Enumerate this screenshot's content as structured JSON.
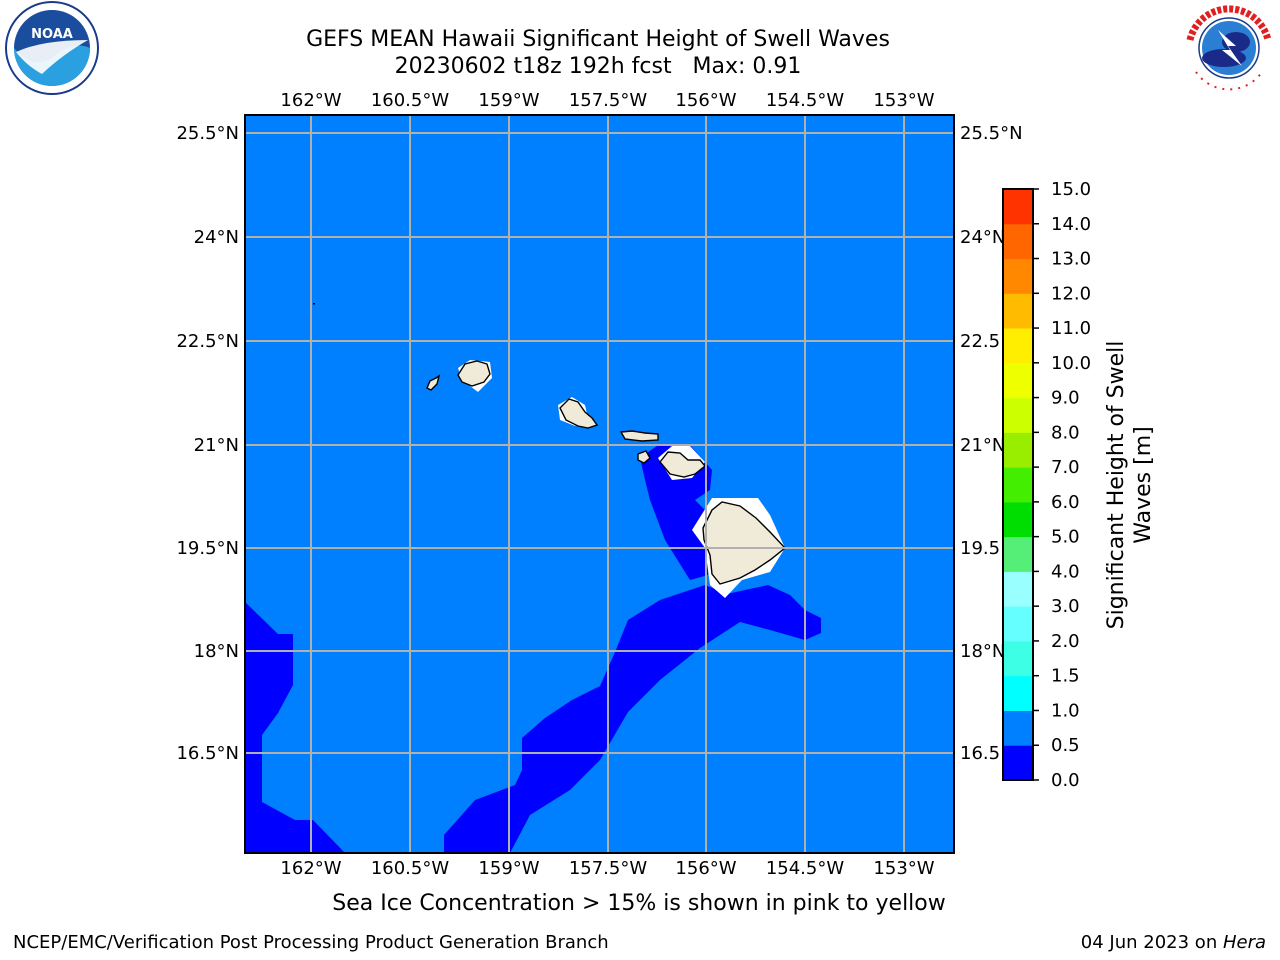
{
  "header": {
    "title_line1": "GEFS MEAN Hawaii Significant Height of Swell Waves",
    "title_line2": "20230602 t18z 192h fcst   Max: 0.91"
  },
  "map": {
    "lon_ticks": [
      "162°W",
      "160.5°W",
      "159°W",
      "157.5°W",
      "156°W",
      "154.5°W",
      "153°W"
    ],
    "lat_ticks_left": [
      "25.5°N",
      "24°N",
      "22.5°N",
      "21°N",
      "19.5°N",
      "18°N",
      "16.5°N"
    ],
    "lat_ticks_right": [
      "25.5°N",
      "24°N",
      "22.5",
      "21°N",
      "19.5",
      "18°N",
      "16.5"
    ]
  },
  "colorbar": {
    "label_line1": "Significant Height of Swell",
    "label_line2": "Waves [m]",
    "ticks": [
      "0.0",
      "0.5",
      "1.0",
      "1.5",
      "2.0",
      "3.0",
      "4.0",
      "5.0",
      "6.0",
      "7.0",
      "8.0",
      "9.0",
      "10.0",
      "11.0",
      "12.0",
      "13.0",
      "14.0",
      "15.0"
    ],
    "colors": [
      "#0000ff",
      "#007fff",
      "#00ffff",
      "#3cffe6",
      "#66ffff",
      "#99ffff",
      "#55ee77",
      "#00dd00",
      "#44ee00",
      "#99ee00",
      "#ccff00",
      "#eeff00",
      "#ffee00",
      "#ffbb00",
      "#ff8800",
      "#ff6600",
      "#ff3300",
      "#ff0000"
    ]
  },
  "legend_colors": {
    "ocean": "#007fff",
    "swell_low": "#0000ff",
    "land": "#efebd8",
    "grid": "#b0b0b0"
  },
  "footer": {
    "note": "Sea Ice Concentration > 15% is shown in pink to yellow",
    "credit": "NCEP/EMC/Verification Post Processing Product Generation Branch",
    "date_prefix": "04 Jun 2023 on ",
    "host": "Hera"
  },
  "logos": {
    "noaa_text": "NOAA",
    "nws_text": "NATIONAL WEATHER SERVICE"
  }
}
